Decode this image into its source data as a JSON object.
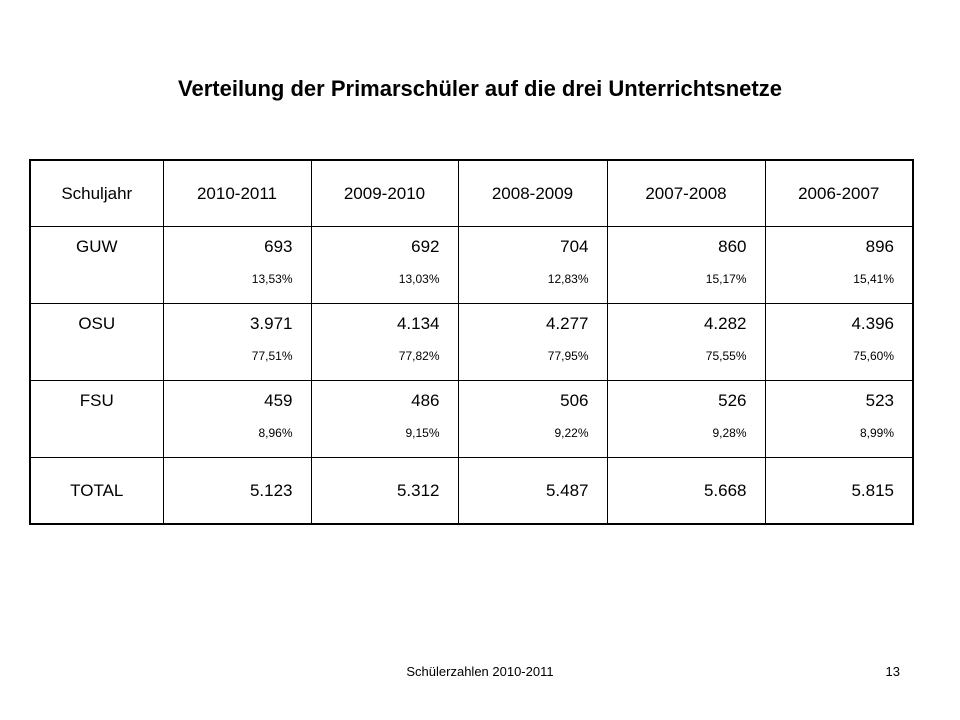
{
  "title": "Verteilung der Primarschüler auf die drei Unterrichtsnetze",
  "table": {
    "header": [
      "Schuljahr",
      "2010-2011",
      "2009-2010",
      "2008-2009",
      "2007-2008",
      "2006-2007"
    ],
    "rows": [
      {
        "label": "GUW",
        "cells": [
          {
            "count": "693",
            "pct": "13,53%"
          },
          {
            "count": "692",
            "pct": "13,03%"
          },
          {
            "count": "704",
            "pct": "12,83%"
          },
          {
            "count": "860",
            "pct": "15,17%"
          },
          {
            "count": "896",
            "pct": "15,41%"
          }
        ]
      },
      {
        "label": "OSU",
        "cells": [
          {
            "count": "3.971",
            "pct": "77,51%"
          },
          {
            "count": "4.134",
            "pct": "77,82%"
          },
          {
            "count": "4.277",
            "pct": "77,95%"
          },
          {
            "count": "4.282",
            "pct": "75,55%"
          },
          {
            "count": "4.396",
            "pct": "75,60%"
          }
        ]
      },
      {
        "label": "FSU",
        "cells": [
          {
            "count": "459",
            "pct": "8,96%"
          },
          {
            "count": "486",
            "pct": "9,15%"
          },
          {
            "count": "506",
            "pct": "9,22%"
          },
          {
            "count": "526",
            "pct": "9,28%"
          },
          {
            "count": "523",
            "pct": "8,99%"
          }
        ]
      }
    ],
    "total": {
      "label": "TOTAL",
      "values": [
        "5.123",
        "5.312",
        "5.487",
        "5.668",
        "5.815"
      ]
    }
  },
  "footer": {
    "text": "Schülerzahlen 2010-2011",
    "page_number": "13"
  }
}
